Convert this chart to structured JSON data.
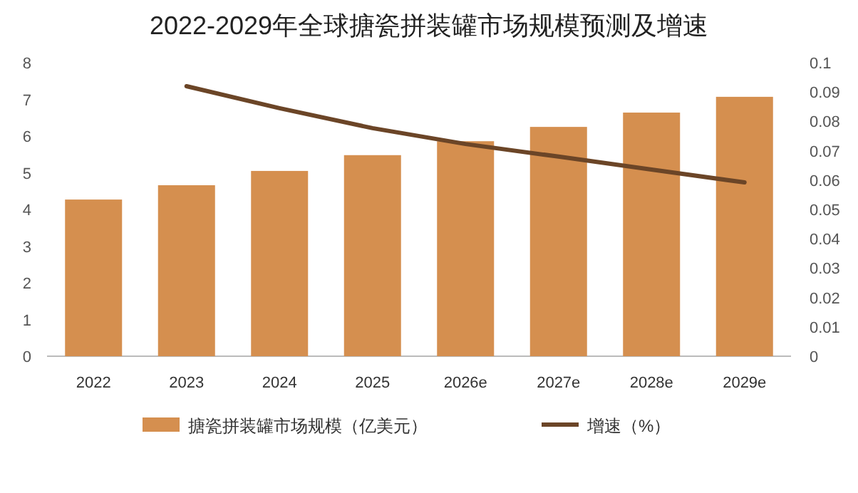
{
  "chart_data": {
    "type": "bar",
    "title": "2022-2029年全球搪瓷拼装罐市场规模预测及增速",
    "categories": [
      "2022",
      "2023",
      "2024",
      "2025",
      "2026e",
      "2027e",
      "2028e",
      "2029e"
    ],
    "series": [
      {
        "name": "搪瓷拼装罐市场规模（亿美元）",
        "color": "#d58f4f",
        "values": [
          4.27,
          4.66,
          5.05,
          5.48,
          5.86,
          6.25,
          6.64,
          7.07
        ]
      },
      {
        "name": "增速（%）",
        "type": "line",
        "axis": "y2",
        "color": "#6b4527",
        "values": [
          null,
          0.092,
          0.0845,
          0.0777,
          0.0723,
          0.068,
          0.0636,
          0.0592
        ]
      }
    ],
    "ylim": [
      0,
      8
    ],
    "yticks": [
      0,
      1,
      2,
      3,
      4,
      5,
      6,
      7,
      8
    ],
    "y2lim": [
      0,
      0.1
    ],
    "y2ticks": [
      0,
      0.01,
      0.02,
      0.03,
      0.04,
      0.05,
      0.06,
      0.07,
      0.08,
      0.09,
      0.1
    ],
    "legend": "bottom",
    "grid": false,
    "marker": "none",
    "line_style": "solid"
  }
}
